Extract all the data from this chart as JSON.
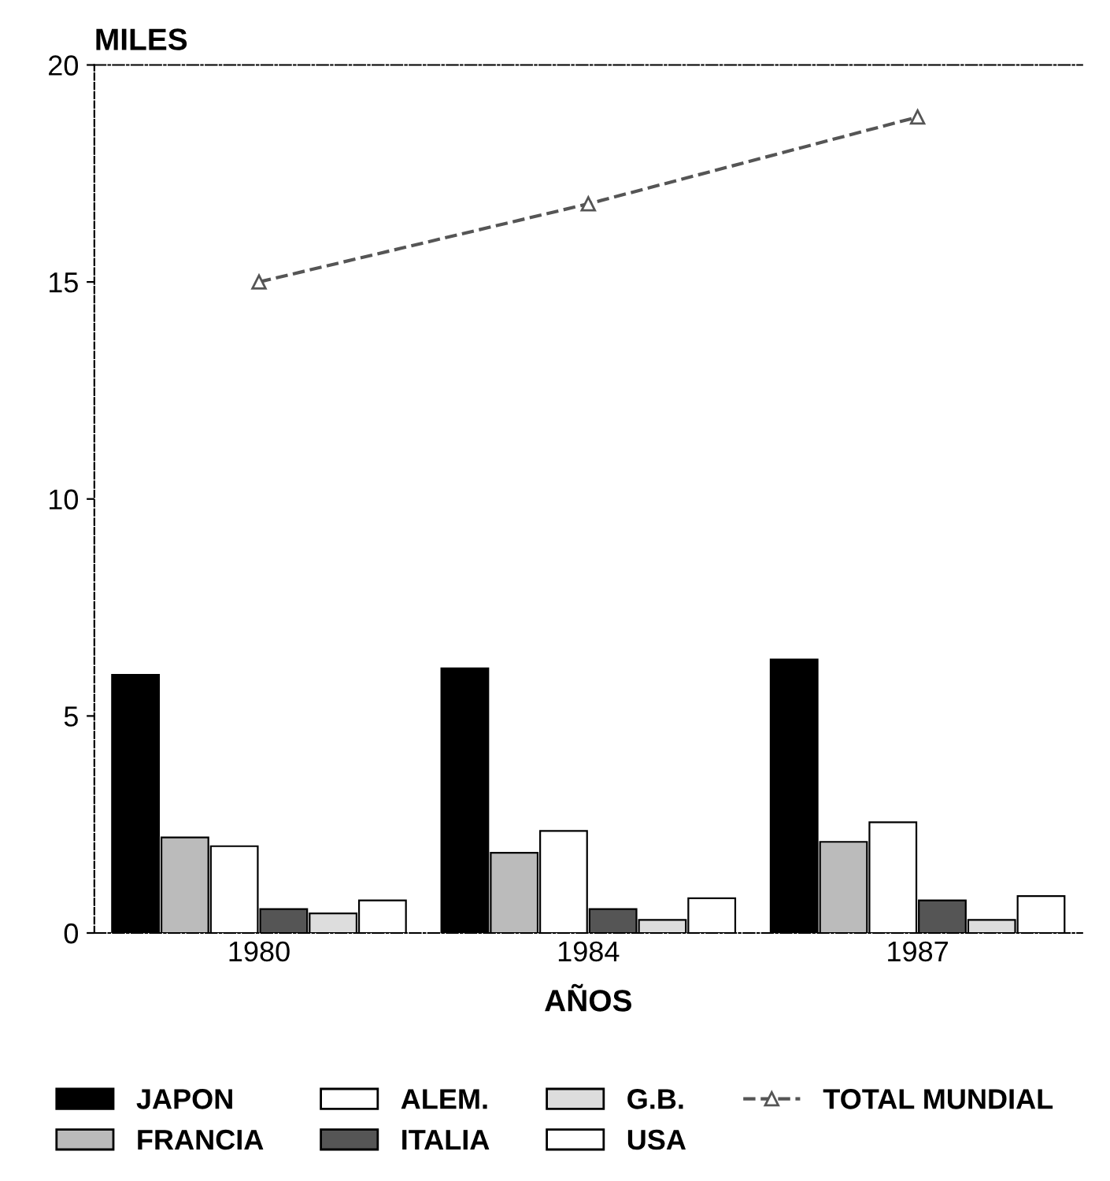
{
  "chart_data": {
    "type": "bar",
    "ylabel": "MILES",
    "xlabel": "AÑOS",
    "categories": [
      "1980",
      "1984",
      "1987"
    ],
    "series": [
      {
        "name": "JAPON",
        "color": "#000000",
        "values": [
          5.95,
          6.1,
          6.3
        ]
      },
      {
        "name": "FRANCIA",
        "color": "#bbbbbb",
        "values": [
          2.2,
          1.85,
          2.1
        ]
      },
      {
        "name": "ALEM.",
        "color": "#ffffff",
        "values": [
          2.0,
          2.35,
          2.55
        ]
      },
      {
        "name": "ITALIA",
        "color": "#555555",
        "values": [
          0.55,
          0.55,
          0.75
        ]
      },
      {
        "name": "G.B.",
        "color": "#dddddd",
        "values": [
          0.45,
          0.3,
          0.3
        ]
      },
      {
        "name": "USA",
        "color": "#ffffff",
        "values": [
          0.75,
          0.8,
          0.85
        ]
      },
      {
        "name": "TOTAL MUNDIAL",
        "type": "line",
        "color": "#555555",
        "marker": "triangle",
        "line_style": "dashed",
        "values": [
          15.0,
          16.8,
          18.8
        ]
      }
    ],
    "ylim": [
      0,
      20
    ],
    "yticks": [
      0,
      5,
      10,
      15,
      20
    ],
    "grid": false,
    "legend": "bottom"
  }
}
